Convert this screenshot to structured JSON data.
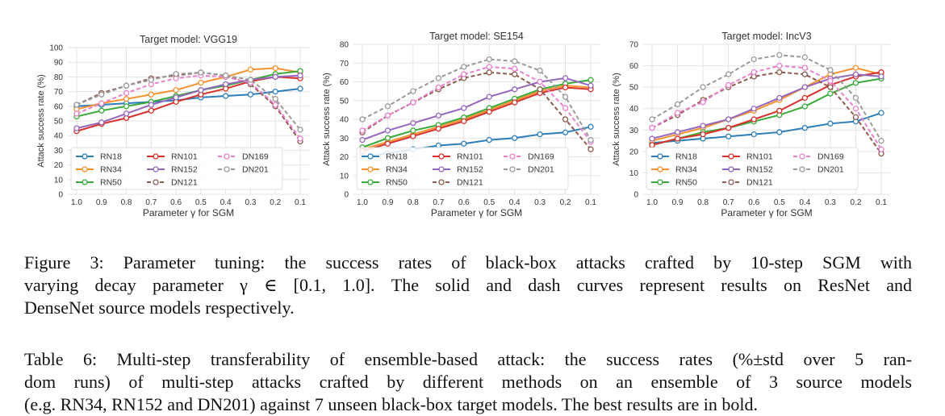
{
  "chart_data": [
    {
      "type": "line",
      "title": "Target model: VGG19",
      "xlabel": "Parameter γ for SGM",
      "ylabel": "Attack success rate (%)",
      "x": [
        "1.0",
        "0.9",
        "0.8",
        "0.7",
        "0.6",
        "0.5",
        "0.4",
        "0.3",
        "0.2",
        "0.1"
      ],
      "yticks": [
        "0",
        "10",
        "20",
        "30",
        "40",
        "50",
        "60",
        "70",
        "80",
        "90",
        "100"
      ],
      "ylim": [
        0,
        100
      ],
      "grid": true,
      "legend": "lower-left",
      "series": [
        {
          "name": "RN18",
          "values": [
            60,
            61,
            62,
            63,
            64,
            66,
            67,
            68,
            70,
            72
          ]
        },
        {
          "name": "RN34",
          "values": [
            58,
            62,
            65,
            68,
            71,
            76,
            80,
            85,
            86,
            83
          ]
        },
        {
          "name": "RN50",
          "values": [
            53,
            57,
            60,
            63,
            67,
            71,
            74,
            78,
            82,
            84
          ]
        },
        {
          "name": "RN101",
          "values": [
            43,
            48,
            52,
            57,
            63,
            68,
            72,
            77,
            80,
            79
          ]
        },
        {
          "name": "RN152",
          "values": [
            45,
            49,
            55,
            61,
            66,
            71,
            75,
            78,
            80,
            81
          ]
        },
        {
          "name": "DN121",
          "values": [
            61,
            69,
            74,
            79,
            81,
            83,
            81,
            75,
            60,
            36
          ]
        },
        {
          "name": "DN169",
          "values": [
            55,
            62,
            69,
            75,
            79,
            81,
            80,
            76,
            61,
            38
          ]
        },
        {
          "name": "DN201",
          "values": [
            61,
            68,
            74,
            78,
            82,
            83,
            81,
            78,
            65,
            44
          ]
        }
      ]
    },
    {
      "type": "line",
      "title": "Target model: SE154",
      "xlabel": "Parameter γ for SGM",
      "ylabel": "Attack success rate (%)",
      "x": [
        "1.0",
        "0.9",
        "0.8",
        "0.7",
        "0.6",
        "0.5",
        "0.4",
        "0.3",
        "0.2",
        "0.1"
      ],
      "yticks": [
        "0",
        "10",
        "20",
        "30",
        "40",
        "50",
        "60",
        "70",
        "80"
      ],
      "ylim": [
        0,
        80
      ],
      "grid": true,
      "legend": "lower-left",
      "series": [
        {
          "name": "RN18",
          "values": [
            20,
            22,
            24,
            26,
            27,
            29,
            30,
            32,
            33,
            36
          ]
        },
        {
          "name": "RN34",
          "values": [
            24,
            28,
            32,
            36,
            40,
            45,
            50,
            55,
            58,
            57
          ]
        },
        {
          "name": "RN50",
          "values": [
            25,
            30,
            34,
            37,
            41,
            46,
            51,
            56,
            59,
            61
          ]
        },
        {
          "name": "RN101",
          "values": [
            23,
            27,
            31,
            35,
            39,
            44,
            49,
            54,
            57,
            56
          ]
        },
        {
          "name": "RN152",
          "values": [
            29,
            34,
            38,
            42,
            46,
            52,
            56,
            60,
            62,
            58
          ]
        },
        {
          "name": "DN121",
          "values": [
            33,
            42,
            49,
            56,
            62,
            65,
            64,
            56,
            40,
            24
          ]
        },
        {
          "name": "DN169",
          "values": [
            34,
            42,
            49,
            57,
            64,
            68,
            67,
            60,
            46,
            28
          ]
        },
        {
          "name": "DN201",
          "values": [
            40,
            47,
            55,
            62,
            68,
            72,
            71,
            66,
            52,
            29
          ]
        }
      ]
    },
    {
      "type": "line",
      "title": "Target model: IncV3",
      "xlabel": "Parameter γ for SGM",
      "ylabel": "Attack success rate (%)",
      "x": [
        "1.0",
        "0.9",
        "0.8",
        "0.7",
        "0.6",
        "0.5",
        "0.4",
        "0.3",
        "0.2",
        "0.1"
      ],
      "yticks": [
        "0",
        "10",
        "20",
        "30",
        "40",
        "50",
        "60",
        "70"
      ],
      "ylim": [
        0,
        70
      ],
      "grid": true,
      "legend": "lower-left",
      "series": [
        {
          "name": "RN18",
          "values": [
            24,
            25,
            26,
            27,
            28,
            29,
            31,
            33,
            34,
            38
          ]
        },
        {
          "name": "RN34",
          "values": [
            25,
            28,
            31,
            35,
            39,
            44,
            50,
            56,
            59,
            56
          ]
        },
        {
          "name": "RN50",
          "values": [
            23,
            26,
            29,
            31,
            34,
            37,
            41,
            47,
            52,
            54
          ]
        },
        {
          "name": "RN101",
          "values": [
            23,
            26,
            28,
            31,
            35,
            39,
            45,
            51,
            55,
            57
          ]
        },
        {
          "name": "RN152",
          "values": [
            26,
            29,
            32,
            35,
            40,
            45,
            50,
            54,
            56,
            55
          ]
        },
        {
          "name": "DN121",
          "values": [
            31,
            37,
            44,
            50,
            55,
            57,
            56,
            50,
            36,
            19
          ]
        },
        {
          "name": "DN169",
          "values": [
            31,
            38,
            43,
            51,
            57,
            60,
            59,
            53,
            40,
            21
          ]
        },
        {
          "name": "DN201",
          "values": [
            35,
            42,
            50,
            56,
            63,
            65,
            64,
            58,
            45,
            25
          ]
        }
      ]
    }
  ],
  "styles": {
    "RN18": {
      "color": "#2c7db8",
      "dash": false
    },
    "RN34": {
      "color": "#f5922f",
      "dash": false
    },
    "RN50": {
      "color": "#3aaa3a",
      "dash": false
    },
    "RN101": {
      "color": "#d6312c",
      "dash": false
    },
    "RN152": {
      "color": "#9467bd",
      "dash": false
    },
    "DN121": {
      "color": "#8c5a4e",
      "dash": true
    },
    "DN169": {
      "color": "#e881cc",
      "dash": true
    },
    "DN201": {
      "color": "#9a9a9a",
      "dash": true
    }
  },
  "figure_caption": {
    "line1": "Figure 3: Parameter tuning: the success rates of black-box attacks crafted by 10-step SGM with",
    "line2": "varying decay parameter γ ∈ [0.1, 1.0]. The solid and dash curves represent results on ResNet and",
    "line3": "DenseNet source models respectively."
  },
  "table_caption": {
    "line1": "Table 6: Multi-step transferability of ensemble-based attack: the success rates (%±std over 5 ran-",
    "line2": "dom runs) of multi-step attacks crafted by different methods on an ensemble of 3 source models",
    "line3": "(e.g. RN34, RN152 and DN201) against 7 unseen black-box target models. The best results are in bold."
  }
}
